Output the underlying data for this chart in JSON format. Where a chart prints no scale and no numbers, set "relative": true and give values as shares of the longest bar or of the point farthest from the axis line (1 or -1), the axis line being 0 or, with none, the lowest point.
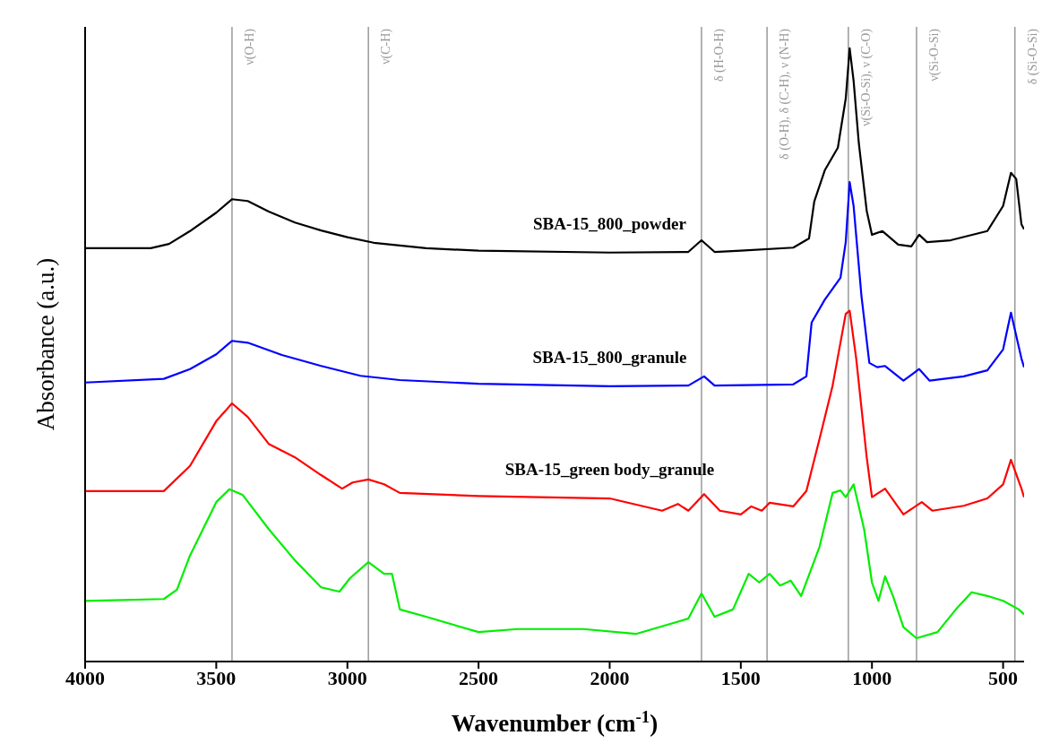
{
  "chart_data": {
    "type": "line",
    "relative": true,
    "xlabel": "Wavenumber (cm$^{-1}$)",
    "ylabel": "Absorbance (a.u.)",
    "xlim": [
      4000,
      420
    ],
    "xticks": [
      4000,
      3500,
      3000,
      2500,
      2000,
      1500,
      1000,
      500
    ],
    "series": [
      {
        "name": "SBA-15_800_powder",
        "color": "#000000",
        "x": [
          4000,
          3750,
          3680,
          3600,
          3500,
          3440,
          3380,
          3300,
          3200,
          3100,
          3000,
          2900,
          2700,
          2500,
          2000,
          1700,
          1650,
          1600,
          1500,
          1300,
          1240,
          1220,
          1180,
          1130,
          1100,
          1085,
          1070,
          1050,
          1020,
          1000,
          960,
          900,
          850,
          820,
          790,
          700,
          560,
          500,
          470,
          450,
          430,
          420
        ],
        "values": [
          0.674,
          0.674,
          0.681,
          0.702,
          0.732,
          0.754,
          0.751,
          0.734,
          0.716,
          0.703,
          0.692,
          0.683,
          0.674,
          0.67,
          0.667,
          0.668,
          0.687,
          0.668,
          0.67,
          0.675,
          0.69,
          0.75,
          0.801,
          0.838,
          0.918,
          1.0,
          0.947,
          0.845,
          0.735,
          0.696,
          0.702,
          0.68,
          0.677,
          0.696,
          0.684,
          0.687,
          0.702,
          0.743,
          0.797,
          0.787,
          0.713,
          0.705
        ]
      },
      {
        "name": "SBA-15_800_granule",
        "color": "#0000ff",
        "x": [
          4000,
          3700,
          3600,
          3500,
          3440,
          3380,
          3250,
          3100,
          2950,
          2800,
          2500,
          2000,
          1700,
          1640,
          1600,
          1300,
          1250,
          1230,
          1180,
          1120,
          1100,
          1085,
          1070,
          1040,
          1010,
          980,
          950,
          880,
          820,
          780,
          650,
          560,
          500,
          470,
          430,
          420
        ],
        "values": [
          0.455,
          0.461,
          0.477,
          0.501,
          0.523,
          0.52,
          0.5,
          0.482,
          0.466,
          0.459,
          0.453,
          0.449,
          0.45,
          0.465,
          0.45,
          0.452,
          0.465,
          0.553,
          0.59,
          0.626,
          0.684,
          0.782,
          0.743,
          0.596,
          0.487,
          0.48,
          0.482,
          0.458,
          0.477,
          0.458,
          0.465,
          0.475,
          0.509,
          0.569,
          0.494,
          0.48
        ]
      },
      {
        "name": "SBA-15_green body_granule",
        "color": "#ff0000",
        "x": [
          4000,
          3700,
          3600,
          3500,
          3440,
          3380,
          3300,
          3200,
          3100,
          3020,
          2980,
          2920,
          2860,
          2800,
          2500,
          2000,
          1800,
          1740,
          1700,
          1640,
          1580,
          1500,
          1460,
          1420,
          1390,
          1300,
          1250,
          1200,
          1150,
          1100,
          1085,
          1060,
          1020,
          1000,
          950,
          880,
          810,
          770,
          650,
          560,
          500,
          470,
          430,
          420
        ],
        "values": [
          0.278,
          0.278,
          0.319,
          0.392,
          0.421,
          0.399,
          0.355,
          0.333,
          0.304,
          0.282,
          0.292,
          0.297,
          0.289,
          0.275,
          0.27,
          0.266,
          0.246,
          0.257,
          0.246,
          0.273,
          0.246,
          0.24,
          0.253,
          0.246,
          0.259,
          0.253,
          0.278,
          0.363,
          0.45,
          0.567,
          0.572,
          0.494,
          0.333,
          0.268,
          0.282,
          0.24,
          0.26,
          0.246,
          0.254,
          0.266,
          0.289,
          0.329,
          0.282,
          0.268
        ]
      },
      {
        "color": "#00ee00",
        "x": [
          4000,
          3700,
          3650,
          3600,
          3500,
          3450,
          3400,
          3300,
          3200,
          3100,
          3030,
          2990,
          2920,
          2860,
          2830,
          2800,
          2700,
          2500,
          2350,
          2100,
          1900,
          1700,
          1650,
          1600,
          1530,
          1470,
          1430,
          1390,
          1350,
          1310,
          1270,
          1200,
          1150,
          1120,
          1100,
          1070,
          1030,
          1000,
          975,
          950,
          920,
          880,
          830,
          750,
          680,
          620,
          560,
          500,
          440,
          420
        ],
        "values": [
          0.099,
          0.102,
          0.117,
          0.173,
          0.26,
          0.281,
          0.272,
          0.216,
          0.165,
          0.121,
          0.114,
          0.136,
          0.162,
          0.143,
          0.143,
          0.085,
          0.073,
          0.048,
          0.053,
          0.053,
          0.045,
          0.07,
          0.111,
          0.073,
          0.085,
          0.143,
          0.129,
          0.143,
          0.124,
          0.132,
          0.107,
          0.187,
          0.275,
          0.279,
          0.268,
          0.289,
          0.216,
          0.129,
          0.099,
          0.139,
          0.107,
          0.056,
          0.038,
          0.048,
          0.085,
          0.113,
          0.107,
          0.099,
          0.085,
          0.077
        ]
      }
    ],
    "ref_lines": [
      {
        "axis": "x",
        "value": 3440,
        "label": "ν(O-H)",
        "color": "#999999"
      },
      {
        "axis": "x",
        "value": 2920,
        "label": "ν(C-H)",
        "color": "#999999"
      },
      {
        "axis": "x",
        "value": 1650,
        "label": "δ (H-O-H)",
        "color": "#999999"
      },
      {
        "axis": "x",
        "value": 1400,
        "label": "δ (O-H), δ (C-H), ν (N-H)",
        "color": "#999999"
      },
      {
        "axis": "x",
        "value": 1090,
        "label": "ν(Si-O-Si), ν (C-O)",
        "color": "#999999"
      },
      {
        "axis": "x",
        "value": 830,
        "label": "ν(Si-O-Si)",
        "color": "#999999"
      },
      {
        "axis": "x",
        "value": 455,
        "label": "δ (Si-O-Si)",
        "color": "#999999"
      }
    ]
  }
}
